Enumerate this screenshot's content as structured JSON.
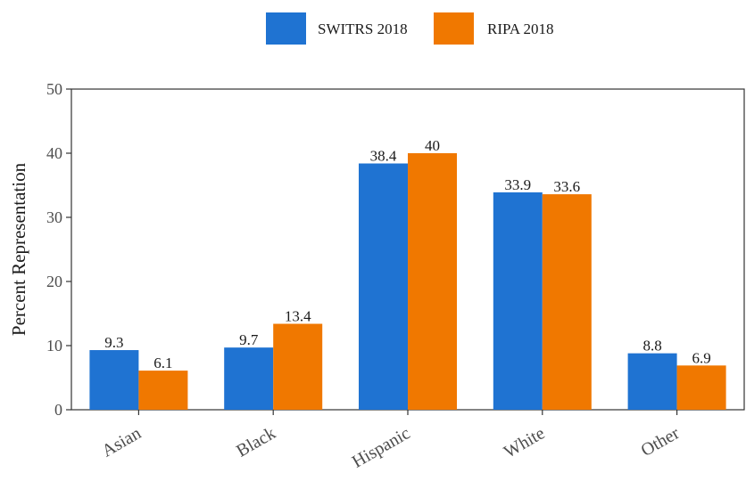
{
  "chart_data": {
    "type": "bar",
    "title": "",
    "xlabel": "",
    "ylabel": "Percent Representation",
    "ylim": [
      0,
      50
    ],
    "yticks": [
      0,
      10,
      20,
      30,
      40,
      50
    ],
    "categories": [
      "Asian",
      "Black",
      "Hispanic",
      "White",
      "Other"
    ],
    "series": [
      {
        "name": "SWITRS 2018",
        "color": "#1f73d2",
        "values": [
          9.3,
          9.7,
          38.4,
          33.9,
          8.8
        ],
        "labels": [
          "9.3",
          "9.7",
          "38.4",
          "33.9",
          "8.8"
        ]
      },
      {
        "name": "RIPA 2018",
        "color": "#f07800",
        "values": [
          6.1,
          13.4,
          40,
          33.6,
          6.9
        ],
        "labels": [
          "6.1",
          "13.4",
          "40",
          "33.6",
          "6.9"
        ]
      }
    ],
    "legend_position": "top",
    "grid": false
  }
}
